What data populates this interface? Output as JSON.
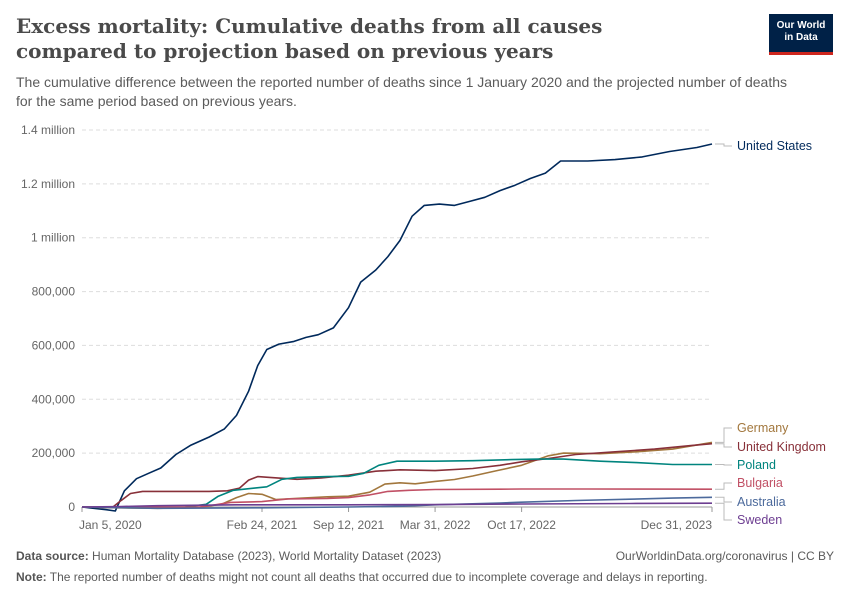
{
  "header": {
    "title": "Excess mortality: Cumulative deaths from all causes compared to projection based on previous years",
    "subtitle": "The cumulative difference between the reported number of deaths since 1 January 2020 and the projected number of deaths for the same period based on previous years."
  },
  "logo": {
    "line1": "Our World",
    "line2": "in Data",
    "bg_color": "#002147",
    "accent_color": "#ce261e"
  },
  "footer": {
    "source_label": "Data source:",
    "source_text": "Human Mortality Database (2023), World Mortality Dataset (2023)",
    "url_text": "OurWorldinData.org/coronavirus | CC BY",
    "note_label": "Note:",
    "note_text": "The reported number of deaths might not count all deaths that occurred due to incomplete coverage and delays in reporting."
  },
  "chart_data": {
    "type": "line",
    "x_type": "date",
    "x_range": [
      "2020-01-05",
      "2023-12-31"
    ],
    "x_ticks": [
      {
        "date": "2020-01-05",
        "label": "Jan 5, 2020"
      },
      {
        "date": "2021-02-24",
        "label": "Feb 24, 2021"
      },
      {
        "date": "2021-09-12",
        "label": "Sep 12, 2021"
      },
      {
        "date": "2022-03-31",
        "label": "Mar 31, 2022"
      },
      {
        "date": "2022-10-17",
        "label": "Oct 17, 2022"
      },
      {
        "date": "2023-12-31",
        "label": "Dec 31, 2023"
      }
    ],
    "ylim": [
      0,
      1400000
    ],
    "y_ticks": [
      {
        "value": 0,
        "label": "0"
      },
      {
        "value": 200000,
        "label": "200,000"
      },
      {
        "value": 400000,
        "label": "400,000"
      },
      {
        "value": 600000,
        "label": "600,000"
      },
      {
        "value": 800000,
        "label": "800,000"
      },
      {
        "value": 1000000,
        "label": "1 million"
      },
      {
        "value": 1200000,
        "label": "1.2 million"
      },
      {
        "value": 1400000,
        "label": "1.4 million"
      }
    ],
    "grid": true,
    "legend": "right, labels at line ends",
    "series": [
      {
        "name": "United States",
        "color": "#00295b",
        "points": [
          [
            "2020-01-05",
            0
          ],
          [
            "2020-03-01",
            -10000
          ],
          [
            "2020-03-22",
            -15000
          ],
          [
            "2020-04-12",
            60000
          ],
          [
            "2020-05-10",
            105000
          ],
          [
            "2020-06-07",
            125000
          ],
          [
            "2020-07-05",
            145000
          ],
          [
            "2020-08-09",
            195000
          ],
          [
            "2020-09-13",
            230000
          ],
          [
            "2020-10-25",
            260000
          ],
          [
            "2020-11-29",
            290000
          ],
          [
            "2020-12-27",
            340000
          ],
          [
            "2021-01-24",
            430000
          ],
          [
            "2021-02-14",
            525000
          ],
          [
            "2021-03-07",
            585000
          ],
          [
            "2021-04-04",
            605000
          ],
          [
            "2021-05-09",
            615000
          ],
          [
            "2021-06-06",
            630000
          ],
          [
            "2021-07-04",
            640000
          ],
          [
            "2021-08-08",
            665000
          ],
          [
            "2021-09-12",
            740000
          ],
          [
            "2021-10-10",
            835000
          ],
          [
            "2021-11-14",
            880000
          ],
          [
            "2021-12-12",
            930000
          ],
          [
            "2022-01-09",
            990000
          ],
          [
            "2022-02-06",
            1080000
          ],
          [
            "2022-03-06",
            1120000
          ],
          [
            "2022-04-10",
            1125000
          ],
          [
            "2022-05-15",
            1120000
          ],
          [
            "2022-06-19",
            1135000
          ],
          [
            "2022-07-24",
            1150000
          ],
          [
            "2022-08-28",
            1175000
          ],
          [
            "2022-10-02",
            1195000
          ],
          [
            "2022-11-06",
            1220000
          ],
          [
            "2022-12-11",
            1240000
          ],
          [
            "2023-01-15",
            1285000
          ],
          [
            "2023-03-19",
            1285000
          ],
          [
            "2023-05-21",
            1290000
          ],
          [
            "2023-07-23",
            1300000
          ],
          [
            "2023-09-24",
            1320000
          ],
          [
            "2023-11-26",
            1335000
          ],
          [
            "2023-12-31",
            1348000
          ]
        ]
      },
      {
        "name": "Germany",
        "color": "#a2773d",
        "points": [
          [
            "2020-01-05",
            0
          ],
          [
            "2020-03-29",
            -3000
          ],
          [
            "2020-06-28",
            -5000
          ],
          [
            "2020-09-27",
            -2000
          ],
          [
            "2020-11-22",
            10000
          ],
          [
            "2020-12-27",
            35000
          ],
          [
            "2021-01-24",
            50000
          ],
          [
            "2021-02-24",
            47000
          ],
          [
            "2021-03-28",
            28000
          ],
          [
            "2021-05-30",
            33000
          ],
          [
            "2021-07-25",
            38000
          ],
          [
            "2021-09-12",
            40000
          ],
          [
            "2021-10-31",
            55000
          ],
          [
            "2021-12-05",
            85000
          ],
          [
            "2022-01-09",
            90000
          ],
          [
            "2022-02-13",
            86000
          ],
          [
            "2022-03-31",
            95000
          ],
          [
            "2022-05-15",
            102000
          ],
          [
            "2022-06-26",
            115000
          ],
          [
            "2022-08-21",
            135000
          ],
          [
            "2022-10-17",
            155000
          ],
          [
            "2022-12-18",
            190000
          ],
          [
            "2023-01-22",
            200000
          ],
          [
            "2023-04-16",
            198000
          ],
          [
            "2023-07-09",
            205000
          ],
          [
            "2023-10-01",
            215000
          ],
          [
            "2023-12-31",
            240000
          ]
        ]
      },
      {
        "name": "United Kingdom",
        "color": "#883039",
        "points": [
          [
            "2020-01-05",
            0
          ],
          [
            "2020-03-15",
            -2000
          ],
          [
            "2020-04-05",
            25000
          ],
          [
            "2020-04-26",
            50000
          ],
          [
            "2020-05-24",
            58000
          ],
          [
            "2020-07-26",
            58000
          ],
          [
            "2020-10-25",
            58000
          ],
          [
            "2020-12-06",
            60000
          ],
          [
            "2021-01-03",
            70000
          ],
          [
            "2021-01-24",
            100000
          ],
          [
            "2021-02-14",
            113000
          ],
          [
            "2021-03-14",
            110000
          ],
          [
            "2021-05-16",
            103000
          ],
          [
            "2021-07-11",
            108000
          ],
          [
            "2021-09-12",
            118000
          ],
          [
            "2021-11-14",
            133000
          ],
          [
            "2022-01-09",
            138000
          ],
          [
            "2022-03-31",
            135000
          ],
          [
            "2022-06-26",
            143000
          ],
          [
            "2022-08-28",
            155000
          ],
          [
            "2022-10-17",
            168000
          ],
          [
            "2022-12-18",
            180000
          ],
          [
            "2023-02-19",
            195000
          ],
          [
            "2023-05-21",
            205000
          ],
          [
            "2023-08-20",
            215000
          ],
          [
            "2023-11-12",
            228000
          ],
          [
            "2023-12-31",
            235000
          ]
        ]
      },
      {
        "name": "Poland",
        "color": "#00847e",
        "points": [
          [
            "2020-01-05",
            0
          ],
          [
            "2020-04-26",
            -2000
          ],
          [
            "2020-08-30",
            0
          ],
          [
            "2020-10-18",
            10000
          ],
          [
            "2020-11-15",
            40000
          ],
          [
            "2020-12-20",
            62000
          ],
          [
            "2021-02-07",
            70000
          ],
          [
            "2021-03-07",
            75000
          ],
          [
            "2021-04-11",
            103000
          ],
          [
            "2021-05-16",
            110000
          ],
          [
            "2021-07-25",
            113000
          ],
          [
            "2021-09-12",
            114000
          ],
          [
            "2021-10-17",
            125000
          ],
          [
            "2021-11-21",
            155000
          ],
          [
            "2022-01-02",
            170000
          ],
          [
            "2022-03-31",
            170000
          ],
          [
            "2022-06-26",
            172000
          ],
          [
            "2022-09-25",
            176000
          ],
          [
            "2022-11-27",
            178000
          ],
          [
            "2023-01-22",
            178000
          ],
          [
            "2023-04-16",
            170000
          ],
          [
            "2023-07-09",
            165000
          ],
          [
            "2023-10-01",
            158000
          ],
          [
            "2023-12-31",
            158000
          ]
        ]
      },
      {
        "name": "Bulgaria",
        "color": "#c15065",
        "points": [
          [
            "2020-01-05",
            0
          ],
          [
            "2020-10-04",
            0
          ],
          [
            "2020-11-08",
            8000
          ],
          [
            "2020-12-13",
            17000
          ],
          [
            "2021-02-24",
            20000
          ],
          [
            "2021-04-25",
            30000
          ],
          [
            "2021-07-25",
            32000
          ],
          [
            "2021-09-12",
            35000
          ],
          [
            "2021-10-31",
            45000
          ],
          [
            "2021-12-12",
            58000
          ],
          [
            "2022-01-30",
            62000
          ],
          [
            "2022-03-31",
            65000
          ],
          [
            "2022-08-28",
            66000
          ],
          [
            "2022-10-17",
            67000
          ],
          [
            "2023-03-19",
            67000
          ],
          [
            "2023-12-31",
            66000
          ]
        ]
      },
      {
        "name": "Australia",
        "color": "#4c6a9c",
        "points": [
          [
            "2020-01-05",
            0
          ],
          [
            "2020-06-28",
            -5000
          ],
          [
            "2021-02-24",
            -3000
          ],
          [
            "2021-09-12",
            0
          ],
          [
            "2022-01-16",
            3000
          ],
          [
            "2022-03-31",
            8000
          ],
          [
            "2022-08-28",
            15000
          ],
          [
            "2022-10-17",
            18000
          ],
          [
            "2023-02-19",
            24000
          ],
          [
            "2023-06-25",
            29000
          ],
          [
            "2023-10-01",
            33000
          ],
          [
            "2023-12-31",
            36000
          ]
        ]
      },
      {
        "name": "Sweden",
        "color": "#6d3e91",
        "points": [
          [
            "2020-01-05",
            0
          ],
          [
            "2020-04-05",
            2000
          ],
          [
            "2020-06-28",
            5000
          ],
          [
            "2020-12-27",
            8000
          ],
          [
            "2021-09-12",
            8000
          ],
          [
            "2022-03-31",
            9000
          ],
          [
            "2022-10-17",
            11000
          ],
          [
            "2023-06-25",
            13000
          ],
          [
            "2023-12-31",
            14000
          ]
        ]
      }
    ]
  }
}
